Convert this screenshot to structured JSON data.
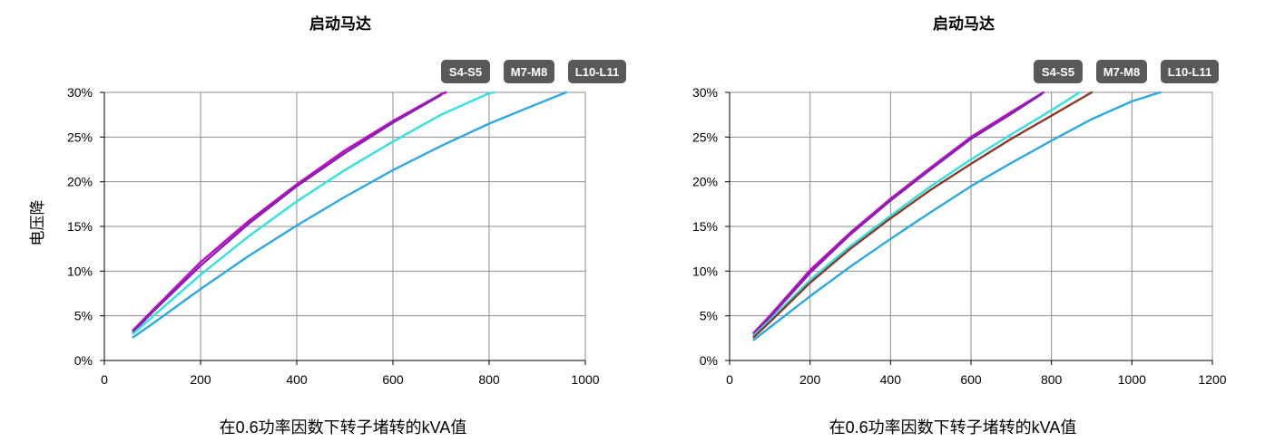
{
  "chart_data": [
    {
      "type": "line",
      "title": "启动马达",
      "xlabel": "在0.6功率因数下转子堵转的kVA值",
      "ylabel": "电压降",
      "xlim": [
        0,
        1000
      ],
      "ylim": [
        0,
        30
      ],
      "xticks": [
        "0",
        "200",
        "400",
        "600",
        "800",
        "1000"
      ],
      "yticks": [
        "0%",
        "5%",
        "10%",
        "15%",
        "20%",
        "25%",
        "30%"
      ],
      "grid": true,
      "badges": [
        "S4-S5",
        "M7-M8",
        "L10-L11"
      ],
      "series": [
        {
          "color": "#cc00cc",
          "x": [
            60,
            100,
            200,
            300,
            400,
            500,
            600,
            700,
            710
          ],
          "y": [
            3.4,
            5.6,
            11.0,
            15.6,
            19.7,
            23.5,
            26.8,
            29.8,
            30.0
          ]
        },
        {
          "color": "#7a2aa8",
          "x": [
            60,
            100,
            200,
            300,
            400,
            500,
            600,
            700
          ],
          "y": [
            3.2,
            5.4,
            10.6,
            15.3,
            19.5,
            23.2,
            26.6,
            29.7
          ]
        },
        {
          "color": "#33e0e0",
          "x": [
            60,
            100,
            200,
            300,
            400,
            500,
            600,
            700,
            800,
            810
          ],
          "y": [
            3.0,
            4.9,
            9.6,
            13.9,
            17.8,
            21.3,
            24.5,
            27.5,
            29.9,
            30.0
          ]
        },
        {
          "color": "#2ea8e0",
          "x": [
            60,
            100,
            200,
            300,
            400,
            500,
            600,
            700,
            800,
            900,
            960
          ],
          "y": [
            2.6,
            4.1,
            8.0,
            11.7,
            15.1,
            18.3,
            21.3,
            24.0,
            26.5,
            28.7,
            30.0
          ]
        }
      ]
    },
    {
      "type": "line",
      "title": "启动马达",
      "xlabel": "在0.6功率因数下转子堵转的kVA值",
      "ylabel": "",
      "xlim": [
        0,
        1200
      ],
      "ylim": [
        0,
        30
      ],
      "xticks": [
        "0",
        "200",
        "400",
        "600",
        "800",
        "1000",
        "1200"
      ],
      "yticks": [
        "0%",
        "5%",
        "10%",
        "15%",
        "20%",
        "25%",
        "30%"
      ],
      "grid": true,
      "badges": [
        "S4-S5",
        "M7-M8",
        "L10-L11"
      ],
      "series": [
        {
          "color": "#cc00cc",
          "x": [
            60,
            100,
            200,
            300,
            400,
            500,
            600,
            700,
            780
          ],
          "y": [
            3.1,
            5.0,
            10.1,
            14.3,
            18.1,
            21.6,
            25.0,
            27.8,
            30.0
          ]
        },
        {
          "color": "#7a2aa8",
          "x": [
            60,
            100,
            200,
            300,
            400,
            500,
            600,
            700,
            775
          ],
          "y": [
            2.9,
            4.8,
            9.8,
            14.1,
            17.9,
            21.4,
            24.8,
            27.6,
            29.8
          ]
        },
        {
          "color": "#33e0e0",
          "x": [
            60,
            100,
            200,
            300,
            400,
            500,
            600,
            700,
            800,
            870
          ],
          "y": [
            2.8,
            4.5,
            9.0,
            12.8,
            16.2,
            19.5,
            22.5,
            25.3,
            28.0,
            30.0
          ]
        },
        {
          "color": "#8b3a2a",
          "x": [
            60,
            100,
            200,
            300,
            400,
            500,
            600,
            700,
            800,
            900
          ],
          "y": [
            2.6,
            4.3,
            8.7,
            12.5,
            15.9,
            19.1,
            22.0,
            24.8,
            27.4,
            30.0
          ]
        },
        {
          "color": "#2ea8e0",
          "x": [
            60,
            100,
            200,
            300,
            400,
            500,
            600,
            700,
            800,
            900,
            1000,
            1070
          ],
          "y": [
            2.3,
            3.7,
            7.2,
            10.5,
            13.6,
            16.6,
            19.5,
            22.1,
            24.6,
            27.0,
            29.0,
            30.0
          ]
        }
      ]
    }
  ]
}
